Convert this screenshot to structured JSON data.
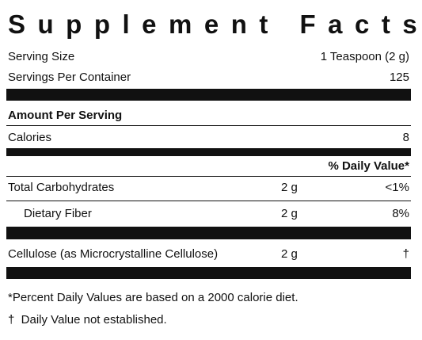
{
  "title": "Supplement Facts",
  "serving": {
    "size_label": "Serving Size",
    "size_value": "1 Teaspoon (2 g)",
    "per_container_label": "Servings Per Container",
    "per_container_value": 125
  },
  "amount_header": "Amount Per Serving",
  "calories": {
    "label": "Calories",
    "value": 8
  },
  "dv_header": "% Daily Value*",
  "rows": [
    {
      "name": "Total Carbohydrates",
      "amount": "2 g",
      "dv": "<1%"
    },
    {
      "name": "Dietary Fiber",
      "amount": "2 g",
      "dv": "8%"
    },
    {
      "name": "Cellulose (as Microcrystalline Cellulose)",
      "amount": "2 g",
      "dv": "†"
    }
  ],
  "footnotes": [
    "*Percent Daily Values are based on a 2000 calorie diet.",
    "†  Daily Value not established."
  ]
}
